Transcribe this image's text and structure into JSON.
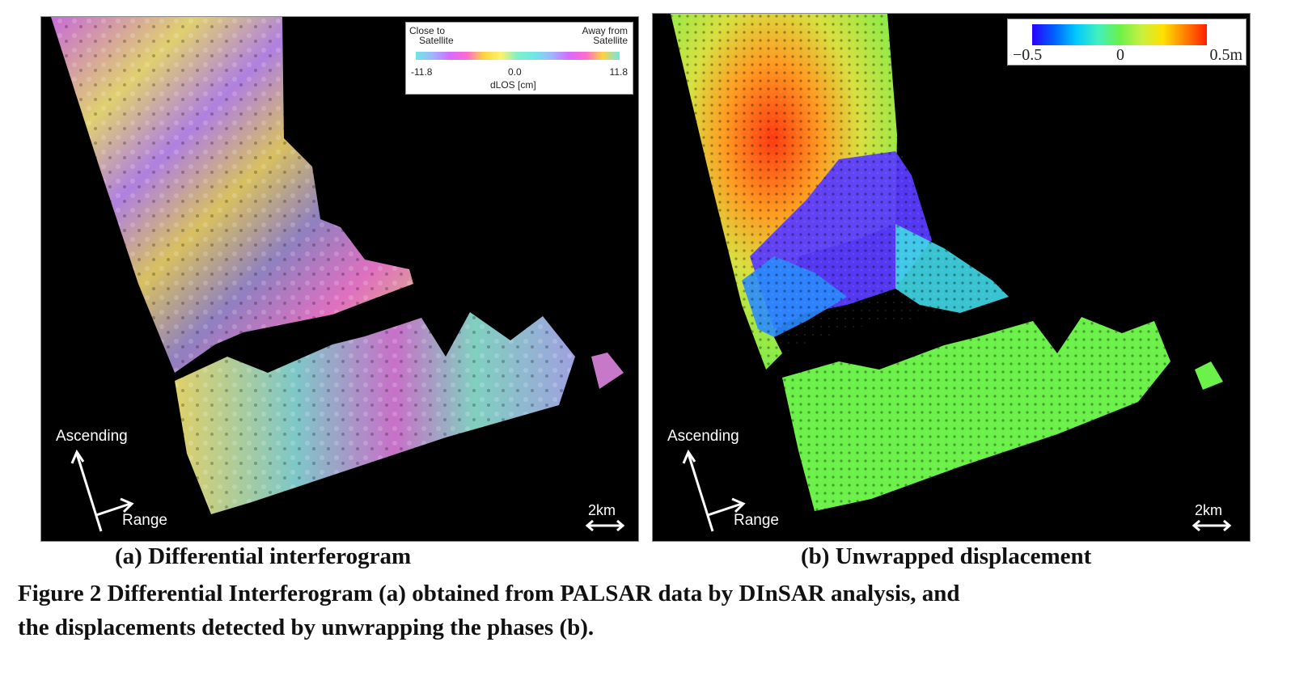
{
  "panel_a": {
    "legend": {
      "left_label_line1": "Close to",
      "left_label_line2": "Satellite",
      "right_label_line1": "Away from",
      "right_label_line2": "Satellite",
      "tick_min": "-11.8",
      "tick_mid": "0.0",
      "tick_max": "11.8",
      "unit_label": "dLOS [cm]"
    },
    "compass": {
      "ascending": "Ascending",
      "range": "Range"
    },
    "scale": "2km",
    "caption": "(a) Differential interferogram"
  },
  "panel_b": {
    "legend": {
      "tick_min": "−0.5",
      "tick_mid": "0",
      "tick_max": "0.5m"
    },
    "compass": {
      "ascending": "Ascending",
      "range": "Range"
    },
    "scale": "2km",
    "caption": "(b) Unwrapped displacement"
  },
  "figure_caption_line1": "Figure 2 Differential Interferogram (a) obtained from PALSAR data by DInSAR analysis, and",
  "figure_caption_line2": "the displacements detected by unwrapping the phases (b).",
  "colors": {
    "background": "#000000",
    "fringe_magenta": "#d56bff",
    "fringe_yellow": "#fff26a",
    "fringe_cyan": "#6ee6e6",
    "disp_green": "#6cf04a",
    "disp_blue": "#2a4bff",
    "disp_red": "#ff3a10",
    "disp_yellow": "#ffe000"
  }
}
